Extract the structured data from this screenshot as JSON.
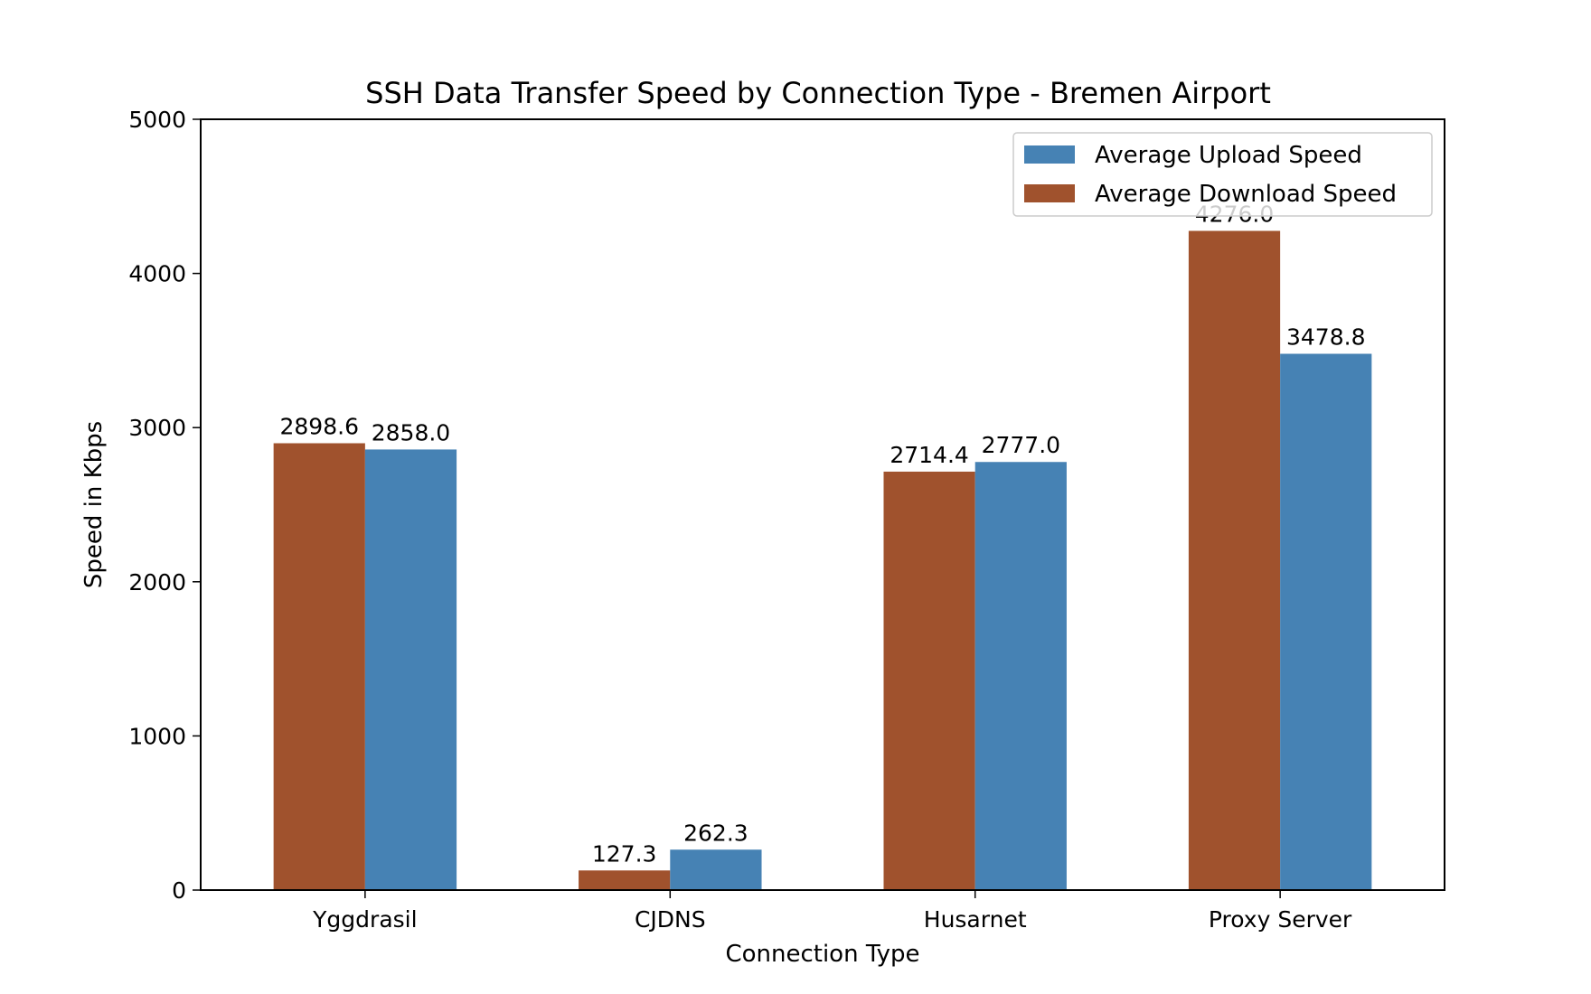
{
  "chart_data": {
    "type": "bar",
    "title": "SSH Data Transfer Speed by Connection Type - Bremen Airport",
    "xlabel": "Connection Type",
    "ylabel": "Speed in Kbps",
    "categories": [
      "Yggdrasil",
      "CJDNS",
      "Husarnet",
      "Proxy Server"
    ],
    "ylim": [
      0,
      5000
    ],
    "yticks": [
      0,
      1000,
      2000,
      3000,
      4000,
      5000
    ],
    "grid": false,
    "legend_position": "top-right",
    "series": [
      {
        "name": "Average Download Speed",
        "color": "#a0522d",
        "values": [
          2898.6,
          127.3,
          2714.4,
          4276.0
        ],
        "labels": [
          "2898.6",
          "127.3",
          "2714.4",
          "4276.0"
        ]
      },
      {
        "name": "Average Upload Speed",
        "color": "#4682b4",
        "values": [
          2858.0,
          262.3,
          2777.0,
          3478.8
        ],
        "labels": [
          "2858.0",
          "262.3",
          "2777.0",
          "3478.8"
        ]
      }
    ],
    "legend_order": [
      1,
      0
    ]
  }
}
